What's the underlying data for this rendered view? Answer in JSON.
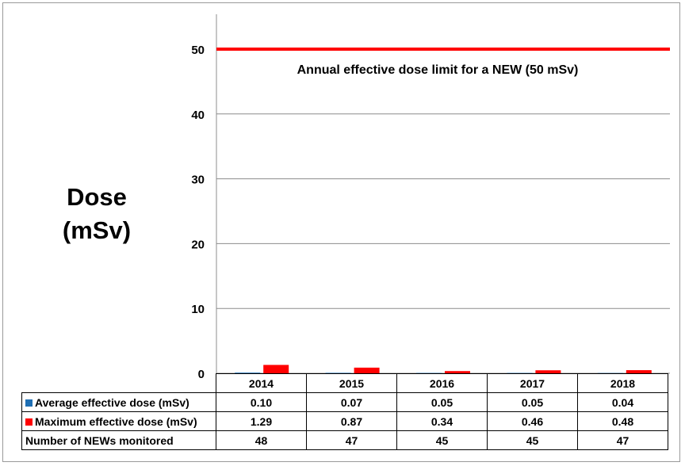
{
  "chart_data": {
    "type": "bar",
    "categories": [
      "2014",
      "2015",
      "2016",
      "2017",
      "2018"
    ],
    "series": [
      {
        "name": "Average effective dose (mSv)",
        "color": "#1f6fb4",
        "values": [
          0.1,
          0.07,
          0.05,
          0.05,
          0.04
        ]
      },
      {
        "name": "Maximum effective dose (mSv)",
        "color": "#ff0000",
        "values": [
          1.29,
          0.87,
          0.34,
          0.46,
          0.48
        ]
      }
    ],
    "extra_rows": [
      {
        "name": "Number of NEWs monitored",
        "values": [
          48,
          47,
          45,
          45,
          47
        ]
      }
    ],
    "ylabel_line1": "Dose",
    "ylabel_line2": "(mSv)",
    "ylim": [
      0,
      55
    ],
    "yticks": [
      0,
      10,
      20,
      30,
      40,
      50
    ],
    "grid": true,
    "reference_line": {
      "value": 50,
      "color": "#ff0000",
      "label": "Annual effective dose limit for a NEW (50 mSv)"
    },
    "legend": "data-table"
  }
}
